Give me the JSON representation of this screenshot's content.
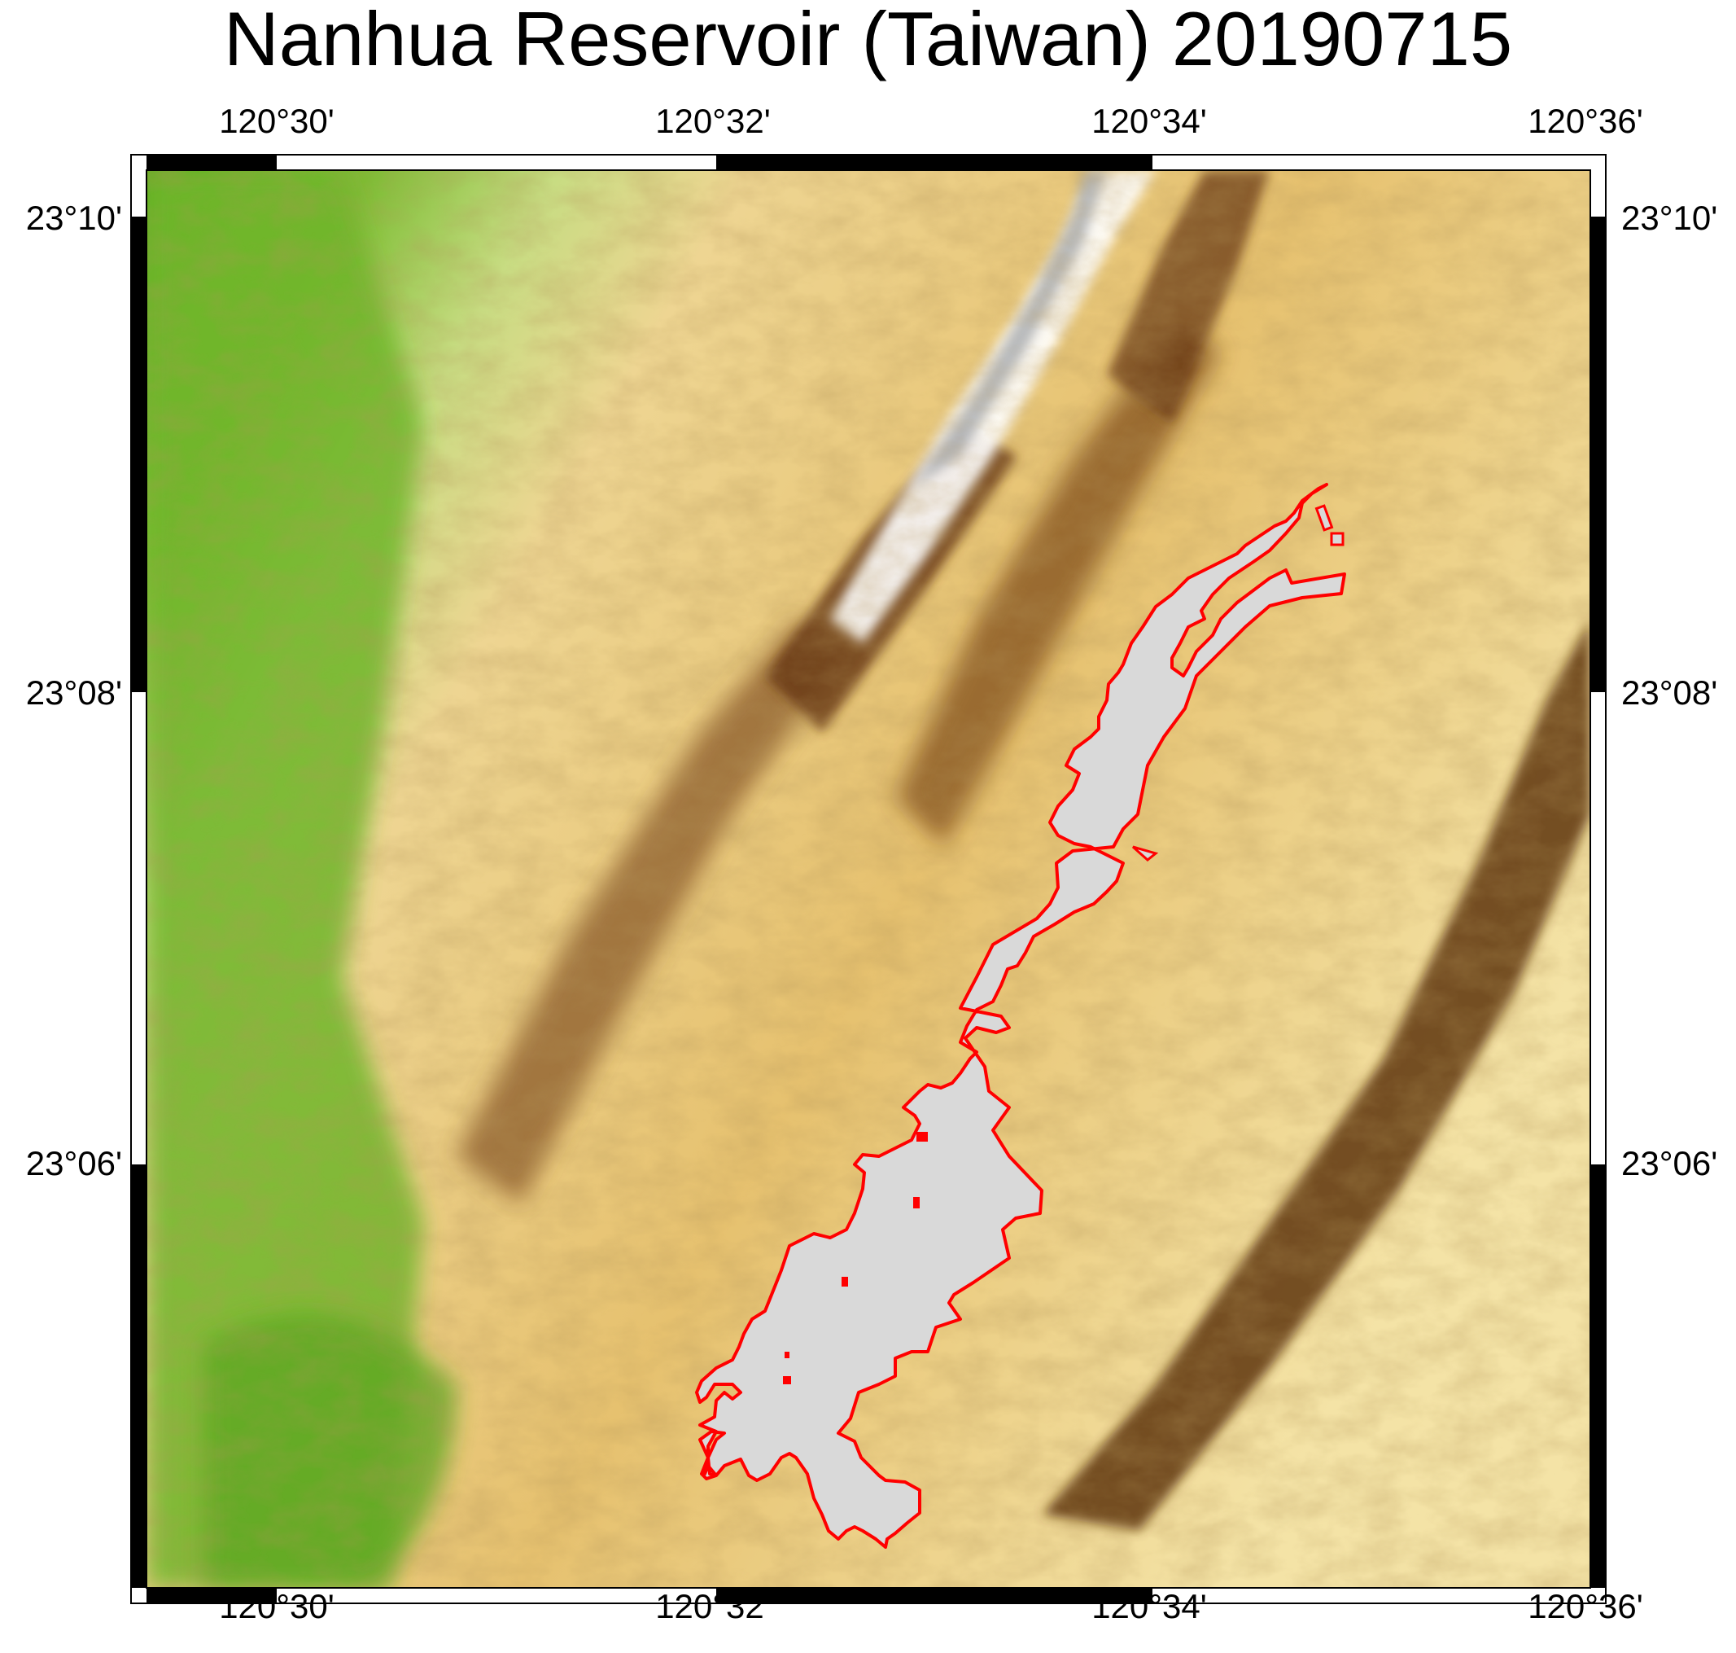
{
  "title": "Nanhua Reservoir (Taiwan) 20190715",
  "map": {
    "lon_labels": [
      "120°30'",
      "120°32'",
      "120°34'",
      "120°36'"
    ],
    "lat_labels": [
      "23°10'",
      "23°08'",
      "23°06'"
    ],
    "reservoir_outline_color": "#ff0000",
    "reservoir_fill_color": "#d9d9d9",
    "lowland_color": "#6fb62a",
    "upland_color": "#e9c57c",
    "ridge_color": "#6b3a12",
    "peak_color": "#ffffff"
  }
}
